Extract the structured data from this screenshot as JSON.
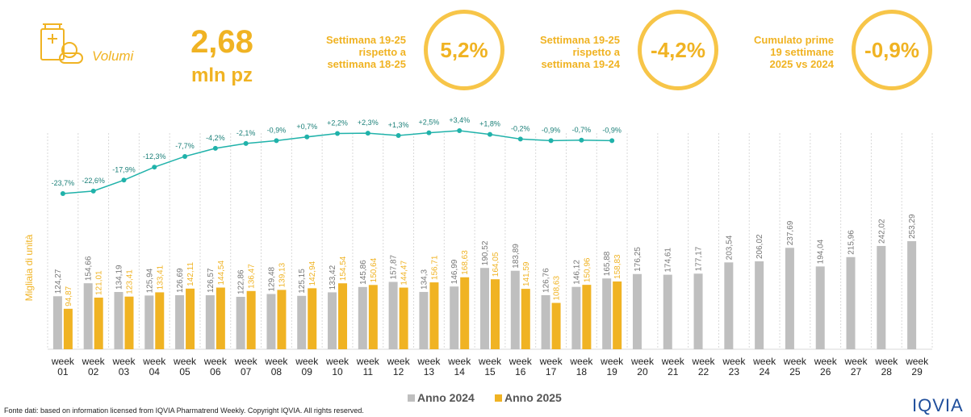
{
  "header": {
    "kpi_label": "Volumi",
    "kpi_value": "2,68",
    "kpi_unit": "mln pz",
    "cards": [
      {
        "label": [
          "Settimana 19-25",
          "rispetto a",
          "settimana 18-25"
        ],
        "value": "5,2%"
      },
      {
        "label": [
          "Settimana 19-25",
          "rispetto a",
          "settimana 19-24"
        ],
        "value": "-4,2%"
      },
      {
        "label": [
          "Cumulato prime",
          "19 settimane",
          "2025 vs 2024"
        ],
        "value": "-0,9%"
      }
    ]
  },
  "chart_data": {
    "type": "bar",
    "ylabel": "Migliaia di unità",
    "categories": [
      "week 01",
      "week 02",
      "week 03",
      "week 04",
      "week 05",
      "week 06",
      "week 07",
      "week 08",
      "week 09",
      "week 10",
      "week 11",
      "week 12",
      "week 13",
      "week 14",
      "week 15",
      "week 16",
      "week 17",
      "week 18",
      "week 19",
      "week 20",
      "week 21",
      "week 22",
      "week 23",
      "week 24",
      "week 25",
      "week 26",
      "week 27",
      "week 28",
      "week 29"
    ],
    "series": [
      {
        "name": "Anno 2024",
        "color": "#bfbfbf",
        "values": [
          124.27,
          154.66,
          134.19,
          125.94,
          126.69,
          126.57,
          122.86,
          129.48,
          125.15,
          133.42,
          145.86,
          157.87,
          134.3,
          146.99,
          190.52,
          183.89,
          126.76,
          146.12,
          165.88,
          176.25,
          174.61,
          177.17,
          203.54,
          206.02,
          237.69,
          194.04,
          215.96,
          242.02,
          253.29
        ],
        "value_labels": [
          "124,27",
          "154,66",
          "134,19",
          "125,94",
          "126,69",
          "126,57",
          "122,86",
          "129,48",
          "125,15",
          "133,42",
          "145,86",
          "157,87",
          "134,3",
          "146,99",
          "190,52",
          "183,89",
          "126,76",
          "146,12",
          "165,88",
          "176,25",
          "174,61",
          "177,17",
          "203,54",
          "206,02",
          "237,69",
          "194,04",
          "215,96",
          "242,02",
          "253,29"
        ]
      },
      {
        "name": "Anno 2025",
        "color": "#f0b323",
        "values": [
          94.87,
          121.01,
          123.41,
          133.41,
          142.11,
          144.54,
          136.47,
          139.13,
          142.94,
          154.54,
          150.64,
          144.47,
          156.71,
          168.63,
          164.05,
          141.59,
          108.63,
          150.96,
          158.83,
          null,
          null,
          null,
          null,
          null,
          null,
          null,
          null,
          null,
          null
        ],
        "value_labels": [
          "94,87",
          "121,01",
          "123,41",
          "133,41",
          "142,11",
          "144,54",
          "136,47",
          "139,13",
          "142,94",
          "154,54",
          "150,64",
          "144,47",
          "156,71",
          "168,63",
          "164,05",
          "141,59",
          "108,63",
          "150,96",
          "158,83",
          null,
          null,
          null,
          null,
          null,
          null,
          null,
          null,
          null,
          null
        ]
      }
    ],
    "line": {
      "type": "line",
      "color": "#20b2aa",
      "values": [
        -23.7,
        -22.6,
        -17.9,
        -12.3,
        -7.7,
        -4.2,
        -2.1,
        -0.9,
        0.7,
        2.2,
        2.3,
        1.3,
        2.5,
        3.4,
        1.8,
        -0.2,
        -0.9,
        -0.7,
        -0.9,
        null,
        null,
        null,
        null,
        null,
        null,
        null,
        null,
        null,
        null
      ],
      "value_labels": [
        "-23,7%",
        "-22,6%",
        "-17,9%",
        "-12,3%",
        "-7,7%",
        "-4,2%",
        "-2,1%",
        "-0,9%",
        "+0,7%",
        "+2,2%",
        "+2,3%",
        "+1,3%",
        "+2,5%",
        "+3,4%",
        "+1,8%",
        "-0,2%",
        "-0,9%",
        "-0,7%",
        "-0,9%",
        null,
        null,
        null,
        null,
        null,
        null,
        null,
        null,
        null,
        null
      ]
    }
  },
  "footer": {
    "source": "Fonte dati: based on information licensed from IQVIA Pharmatrend Weekly. Copyright IQVIA. All rights reserved.",
    "logo": "IQVIA"
  }
}
